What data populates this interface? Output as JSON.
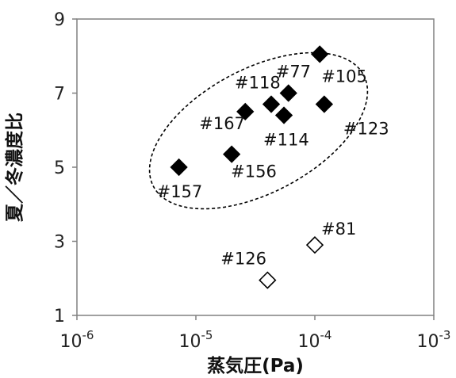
{
  "chart_data": {
    "type": "scatter",
    "xlabel": "蒸気圧(Pa)",
    "ylabel": "夏／冬濃度比",
    "x_scale": "log",
    "xlim": [
      1e-06,
      0.001
    ],
    "ylim": [
      1,
      9
    ],
    "x_ticks": [
      {
        "value": 1e-06,
        "base": "10",
        "exp": "-6"
      },
      {
        "value": 1e-05,
        "base": "10",
        "exp": "-5"
      },
      {
        "value": 0.0001,
        "base": "10",
        "exp": "-4"
      },
      {
        "value": 0.001,
        "base": "10",
        "exp": "-3"
      }
    ],
    "y_ticks": [
      {
        "value": 1,
        "label": "1"
      },
      {
        "value": 3,
        "label": "3"
      },
      {
        "value": 5,
        "label": "5"
      },
      {
        "value": 7,
        "label": "7"
      },
      {
        "value": 9,
        "label": "9"
      }
    ],
    "grid": false,
    "series": [
      {
        "marker": "filled-diamond",
        "color": "#000000",
        "points": [
          {
            "label": "#157",
            "x": 7.2e-06,
            "y": 5.0
          },
          {
            "label": "#156",
            "x": 2e-05,
            "y": 5.35
          },
          {
            "label": "#167",
            "x": 2.6e-05,
            "y": 6.5
          },
          {
            "label": "#118",
            "x": 4.3e-05,
            "y": 6.7
          },
          {
            "label": "#114",
            "x": 5.5e-05,
            "y": 6.4
          },
          {
            "label": "#77",
            "x": 6e-05,
            "y": 7.0
          },
          {
            "label": "#105",
            "x": 0.00011,
            "y": 8.05
          },
          {
            "label": "#123",
            "x": 0.00012,
            "y": 6.7
          }
        ]
      },
      {
        "marker": "open-diamond",
        "color": "#000000",
        "points": [
          {
            "label": "#126",
            "x": 4e-05,
            "y": 1.95
          },
          {
            "label": "#81",
            "x": 0.0001,
            "y": 2.9
          }
        ]
      }
    ],
    "annotations": [
      {
        "type": "dashed-ellipse",
        "encloses": "filled-diamond series"
      }
    ]
  }
}
